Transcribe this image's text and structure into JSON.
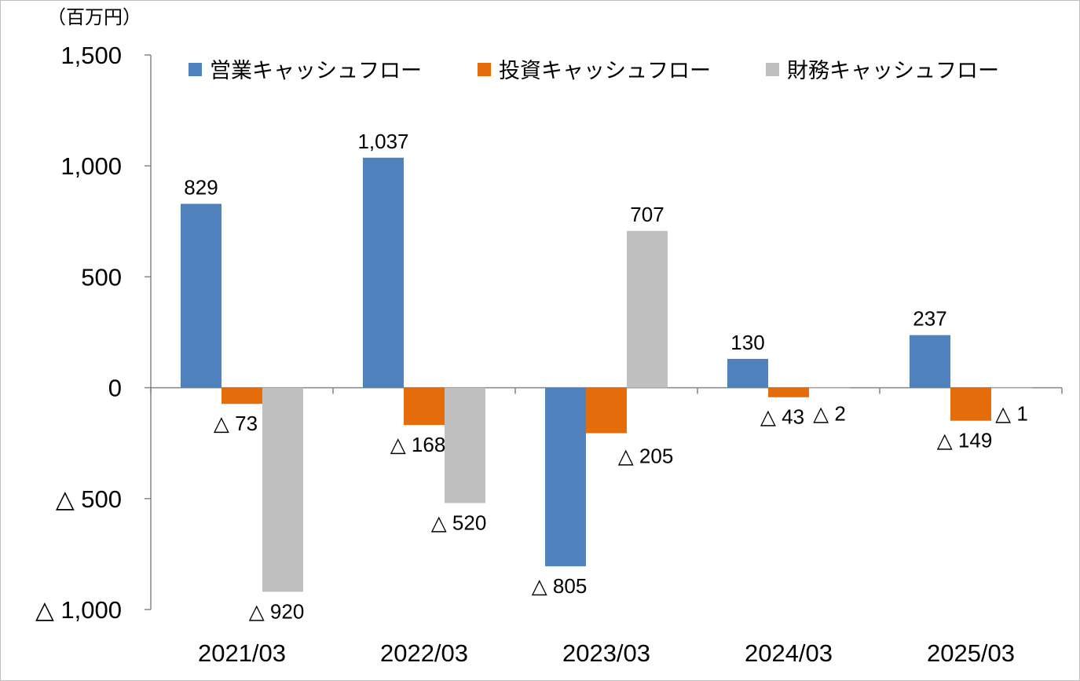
{
  "chart_data": {
    "type": "bar",
    "unit_label": "（百万円）",
    "categories": [
      "2021/03",
      "2022/03",
      "2023/03",
      "2024/03",
      "2025/03"
    ],
    "series": [
      {
        "name": "営業キャッシュフロー",
        "color": "#4f81bd",
        "values": [
          829,
          1037,
          -805,
          130,
          237
        ]
      },
      {
        "name": "投資キャッシュフロー",
        "color": "#e46c0a",
        "values": [
          -73,
          -168,
          -205,
          -43,
          -149
        ]
      },
      {
        "name": "財務キャッシュフロー",
        "color": "#c0c0c0",
        "values": [
          -920,
          -520,
          707,
          -2,
          -1
        ]
      }
    ],
    "ylim": [
      -1000,
      1500
    ],
    "yticks": [
      1500,
      1000,
      500,
      0,
      -500,
      -1000
    ],
    "ytick_labels": [
      "1,500",
      "1,000",
      "500",
      "0",
      "△ 500",
      "△ 1,000"
    ],
    "negative_prefix": "△ ",
    "legend": "top",
    "grid": false
  }
}
